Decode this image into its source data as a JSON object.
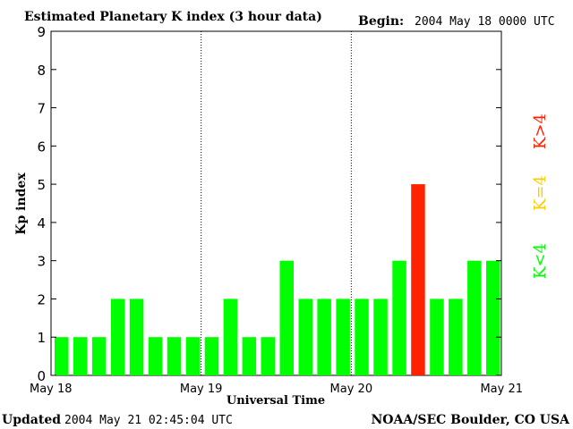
{
  "chart_data": {
    "type": "bar",
    "title": "Estimated Planetary K index (3 hour data)",
    "begin_label": "Begin:",
    "begin_value": "2004 May 18 0000 UTC",
    "ylabel": "Kp index",
    "xlabel": "Universal Time",
    "ylim": [
      0,
      9
    ],
    "yticks": [
      "0",
      "1",
      "2",
      "3",
      "4",
      "5",
      "6",
      "7",
      "8",
      "9"
    ],
    "xticks": [
      {
        "label": "May 18",
        "index": 0
      },
      {
        "label": "May 19",
        "index": 8
      },
      {
        "label": "May 20",
        "index": 16
      },
      {
        "label": "May 21",
        "index": 24
      }
    ],
    "values": [
      1,
      1,
      1,
      2,
      2,
      1,
      1,
      1,
      1,
      2,
      1,
      1,
      3,
      2,
      2,
      2,
      2,
      2,
      3,
      5,
      2,
      2,
      3,
      3
    ],
    "colors": {
      "low": "#00ff00",
      "mid": "#ffcc00",
      "high": "#ff2200"
    },
    "legend": [
      {
        "label": "K>4",
        "color": "#ff2200"
      },
      {
        "label": "K=4",
        "color": "#ffcc00"
      },
      {
        "label": "K<4",
        "color": "#00ff00"
      }
    ]
  },
  "footer": {
    "updated_label": "Updated",
    "updated_value": "2004 May 21 02:45:04 UTC",
    "source": "NOAA/SEC Boulder, CO USA"
  }
}
